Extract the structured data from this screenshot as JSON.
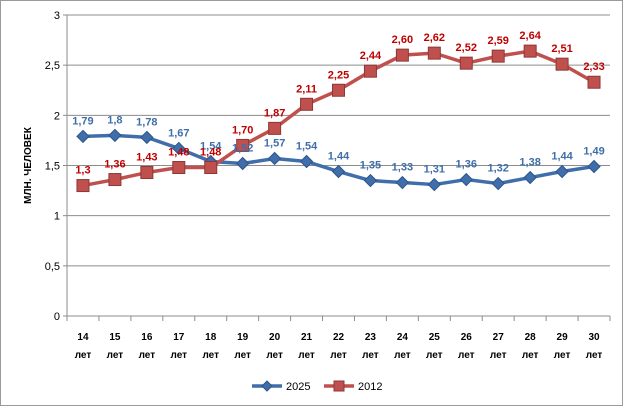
{
  "chart_data": {
    "type": "line",
    "ylabel": "МЛН. ЧЕЛОВЕК",
    "xlabel": "",
    "ylim": [
      0,
      3
    ],
    "yticks": [
      "0",
      "0,5",
      "1",
      "1,5",
      "2",
      "2,5",
      "3"
    ],
    "ytick_values": [
      0,
      0.5,
      1,
      1.5,
      2,
      2.5,
      3
    ],
    "categories": [
      [
        "14",
        "лет"
      ],
      [
        "15",
        "лет"
      ],
      [
        "16",
        "лет"
      ],
      [
        "17",
        "лет"
      ],
      [
        "18",
        "лет"
      ],
      [
        "19",
        "лет"
      ],
      [
        "20",
        "лет"
      ],
      [
        "21",
        "лет"
      ],
      [
        "22",
        "лет"
      ],
      [
        "23",
        "лет"
      ],
      [
        "24",
        "лет"
      ],
      [
        "25",
        "лет"
      ],
      [
        "26",
        "лет"
      ],
      [
        "27",
        "лет"
      ],
      [
        "28",
        "лет"
      ],
      [
        "29",
        "лет"
      ],
      [
        "30",
        "лет"
      ]
    ],
    "grid": true,
    "legend_position": "bottom",
    "series": [
      {
        "name": "2025",
        "color": "#3f6eaa",
        "marker": "diamond",
        "values": [
          1.79,
          1.8,
          1.78,
          1.67,
          1.54,
          1.52,
          1.57,
          1.54,
          1.44,
          1.35,
          1.33,
          1.31,
          1.36,
          1.32,
          1.38,
          1.44,
          1.49
        ],
        "labels": [
          "1,79",
          "1,8",
          "1,78",
          "1,67",
          "1,54",
          "1,52",
          "1,57",
          "1,54",
          "1,44",
          "1,35",
          "1,33",
          "1,31",
          "1,36",
          "1,32",
          "1,38",
          "1,44",
          "1,49"
        ]
      },
      {
        "name": "2012",
        "color": "#c0504d",
        "marker": "square",
        "values": [
          1.3,
          1.36,
          1.43,
          1.48,
          1.48,
          1.7,
          1.87,
          2.11,
          2.25,
          2.44,
          2.6,
          2.62,
          2.52,
          2.59,
          2.64,
          2.51,
          2.33
        ],
        "labels": [
          "1,3",
          "1,36",
          "1,43",
          "1,48",
          "1,48",
          "1,70",
          "1,87",
          "2,11",
          "2,25",
          "2,44",
          "2,60",
          "2,62",
          "2,52",
          "2,59",
          "2,64",
          "2,51",
          "2,33"
        ]
      }
    ]
  }
}
